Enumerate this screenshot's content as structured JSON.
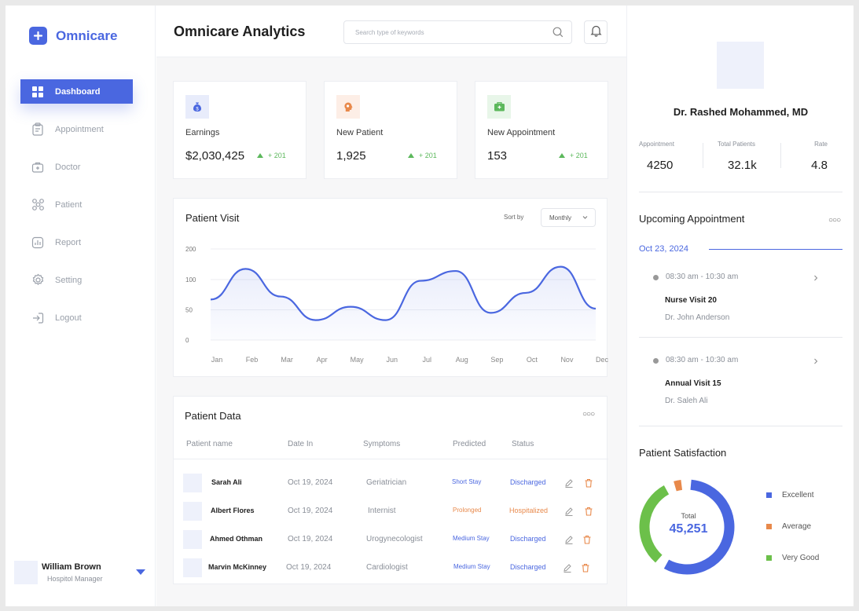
{
  "app": {
    "name": "Omnicare"
  },
  "sidebar": {
    "items": [
      {
        "label": "Dashboard",
        "icon": "dashboard-icon",
        "active": true
      },
      {
        "label": "Appointment",
        "icon": "clipboard-icon"
      },
      {
        "label": "Doctor",
        "icon": "medical-kit-icon"
      },
      {
        "label": "Patient",
        "icon": "patient-network-icon"
      },
      {
        "label": "Report",
        "icon": "report-icon"
      },
      {
        "label": "Setting",
        "icon": "gear-icon"
      },
      {
        "label": "Logout",
        "icon": "logout-icon"
      }
    ]
  },
  "user": {
    "name": "William Brown",
    "role": "Hospitol Manager"
  },
  "header": {
    "title": "Omnicare Analytics",
    "search_placeholder": "Search type of keywords"
  },
  "stats": [
    {
      "label": "Earnings",
      "value": "$2,030,425",
      "delta": "+ 201",
      "icon": "money-bag-icon",
      "icon_bg": "#e8ecfb",
      "icon_color": "#4a67e0"
    },
    {
      "label": "New Patient",
      "value": "1,925",
      "delta": "+ 201",
      "icon": "patient-head-icon",
      "icon_bg": "#fdeee6",
      "icon_color": "#e8894b"
    },
    {
      "label": "New Appointment",
      "value": "153",
      "delta": "+ 201",
      "icon": "briefcase-icon",
      "icon_bg": "#e8f6e9",
      "icon_color": "#5cb85c"
    }
  ],
  "patient_visit": {
    "title": "Patient Visit",
    "sort_label": "Sort by",
    "sort_value": "Monthly"
  },
  "chart_data": {
    "type": "area",
    "x": [
      "Jan",
      "Feb",
      "Mar",
      "Apr",
      "May",
      "Jun",
      "Jul",
      "Aug",
      "Sep",
      "Oct",
      "Nov",
      "Dec"
    ],
    "series": [
      {
        "values": [
          67,
          135,
          72,
          33,
          55,
          33,
          98,
          128,
          45,
          78,
          142,
          52
        ]
      }
    ],
    "yticks": [
      0,
      50,
      100,
      200
    ],
    "color": "#4a67e0"
  },
  "patient_data": {
    "title": "Patient Data",
    "columns": [
      "Patient name",
      "Date In",
      "Symptoms",
      "Predicted",
      "Status"
    ],
    "rows": [
      {
        "name": "Sarah Ali",
        "date": "Oct 19, 2024",
        "symptoms": "Geriatrician",
        "predicted": "Short Stay",
        "status": "Discharged"
      },
      {
        "name": "Albert Flores",
        "date": "Oct 19, 2024",
        "symptoms": "Internist",
        "predicted": "Prolonged",
        "status": "Hospitalized"
      },
      {
        "name": "Ahmed Othman",
        "date": "Oct 19, 2024",
        "symptoms": "Urogynecologist",
        "predicted": "Medium Stay",
        "status": "Discharged"
      },
      {
        "name": "Marvin McKinney",
        "date": "Oct 19, 2024",
        "symptoms": "Cardiologist",
        "predicted": "Medium Stay",
        "status": "Discharged"
      }
    ]
  },
  "doctor": {
    "name": "Dr. Rashed Mohammed, MD",
    "stats": [
      {
        "label": "Appointment",
        "value": "4250"
      },
      {
        "label": "Total Patients",
        "value": "32.1k"
      },
      {
        "label": "Rate",
        "value": "4.8"
      }
    ]
  },
  "upcoming": {
    "title": "Upcoming Appointment",
    "date": "Oct 23, 2024",
    "items": [
      {
        "time": "08:30 am - 10:30 am",
        "title": "Nurse Visit 20",
        "doctor": "Dr. John Anderson"
      },
      {
        "time": "08:30 am - 10:30 am",
        "title": "Annual Visit 15",
        "doctor": "Dr. Saleh Ali"
      }
    ]
  },
  "satisfaction": {
    "title": "Patient Satisfaction",
    "total_label": "Total",
    "total_value": "45,251",
    "segments": [
      {
        "label": "Excellent",
        "share": 0.6,
        "color": "#4a67e0"
      },
      {
        "label": "Average",
        "share": 0.06,
        "color": "#e8894b"
      },
      {
        "label": "Very Good",
        "share": 0.34,
        "color": "#6cc04a"
      }
    ]
  }
}
